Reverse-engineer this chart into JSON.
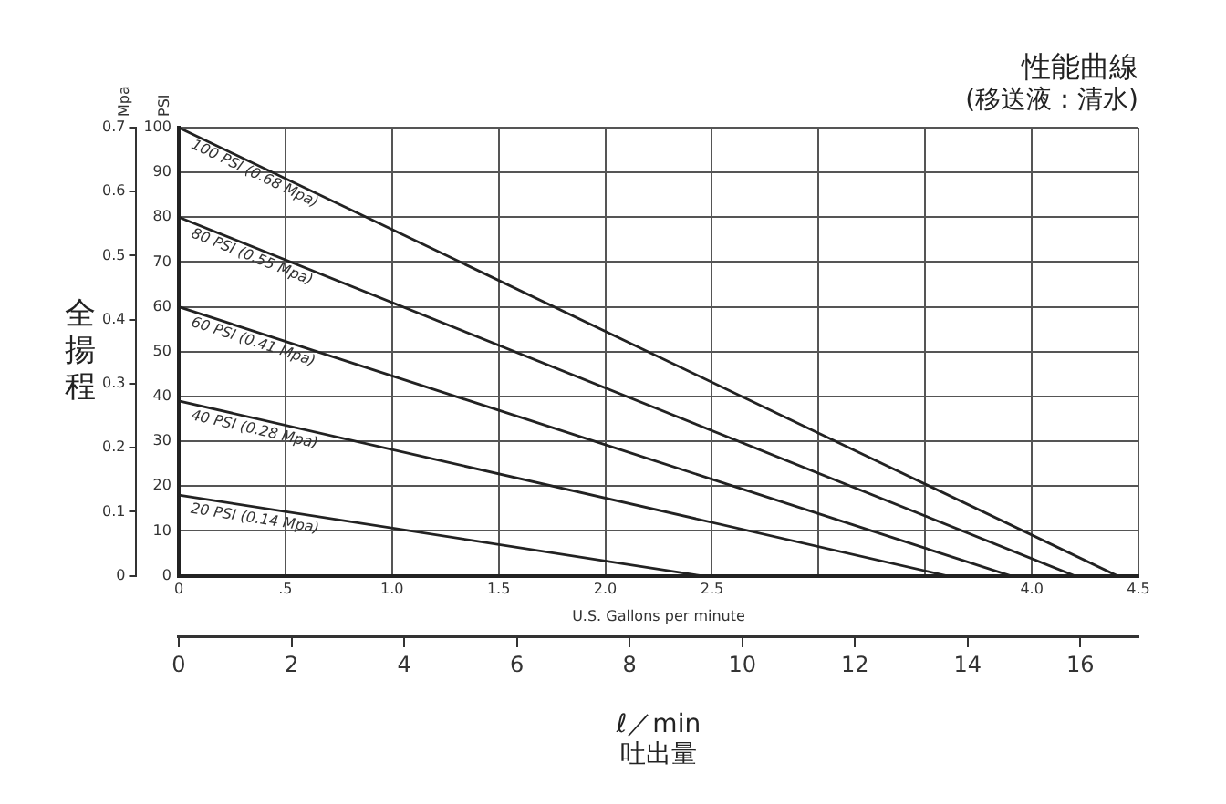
{
  "chart_data": {
    "type": "line",
    "title": "性能曲線",
    "subtitle": "(移送液：清水)",
    "xlabel": "U.S. Gallons per minute",
    "ylabel": "PSI",
    "y2label": "Mpa",
    "x2label": "ℓ／min\n吐出量",
    "annotations": [
      "全揚程"
    ],
    "series": [
      {
        "name": "100 PSI (0.68 Mpa)",
        "color": "#222222",
        "x": [
          0,
          4.4
        ],
        "values": [
          100,
          0
        ]
      },
      {
        "name": "80 PSI (0.55 Mpa)",
        "color": "#222222",
        "x": [
          0,
          4.2
        ],
        "values": [
          80,
          0
        ]
      },
      {
        "name": "60 PSI (0.41 Mpa)",
        "color": "#222222",
        "x": [
          0,
          3.9
        ],
        "values": [
          60,
          0
        ]
      },
      {
        "name": "40 PSI (0.28 Mpa)",
        "color": "#222222",
        "x": [
          0,
          3.6
        ],
        "values": [
          39,
          0
        ]
      },
      {
        "name": "20 PSI (0.14 Mpa)",
        "color": "#222222",
        "x": [
          0,
          2.45
        ],
        "values": [
          18,
          0
        ]
      }
    ],
    "xlim": [
      0,
      4.5
    ],
    "xticks": [
      0,
      {
        "value": 0.5,
        "label": ".5"
      },
      {
        "value": 1,
        "label": "1.0"
      },
      {
        "value": 1.5,
        "label": "1.5"
      },
      {
        "value": 2,
        "label": "2.0"
      },
      {
        "value": 2.5,
        "label": "2.5"
      },
      {
        "value": 3,
        "label": null
      },
      {
        "value": 3.5,
        "label": null
      },
      {
        "value": 4,
        "label": "4.0"
      },
      {
        "value": 4.5,
        "label": "4.5"
      }
    ],
    "x2lim": [
      0,
      17.03
    ],
    "x2ticks": [
      0,
      2,
      4,
      6,
      8,
      10,
      12,
      14,
      16
    ],
    "ylim": [
      0,
      100
    ],
    "yticks": [
      0,
      10,
      20,
      30,
      40,
      50,
      60,
      70,
      80,
      90,
      100
    ],
    "y2lim": [
      0,
      0.7
    ],
    "y2ticks": [
      0,
      0.1,
      0.2,
      0.3,
      0.4,
      0.5,
      0.6,
      0.7
    ],
    "grid": true,
    "legend": false,
    "marker": "none",
    "line_style": "solid"
  }
}
